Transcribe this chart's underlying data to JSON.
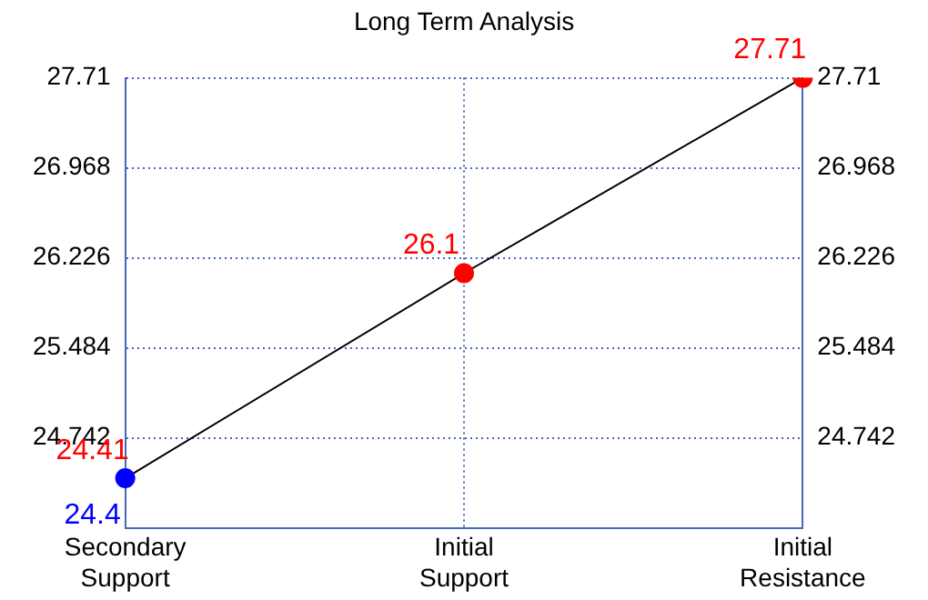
{
  "chart_data": {
    "type": "line",
    "title": "Long Term Analysis",
    "categories": [
      "Secondary Support",
      "Initial Support",
      "Initial Resistance"
    ],
    "series": [
      {
        "color": "#000000",
        "colors": [
          "#0000ff",
          "#ff0000",
          "#ff0000"
        ],
        "values": [
          24.41,
          26.1,
          27.71
        ],
        "value_labels": [
          "24.41",
          "26.1",
          "27.71"
        ]
      }
    ],
    "ylim": [
      24.0,
      27.71
    ],
    "yticks": [
      24.742,
      25.484,
      26.226,
      26.968,
      27.71
    ],
    "y2lim": [
      24.0,
      27.71
    ],
    "y2ticks": [
      24.742,
      25.484,
      26.226,
      26.968,
      27.71
    ],
    "annotations": [
      {
        "text": "24.4",
        "x": "Secondary Support",
        "y": 24.4
      }
    ],
    "grid": true,
    "legend": false,
    "marker": "circle",
    "line_style": "solid"
  }
}
